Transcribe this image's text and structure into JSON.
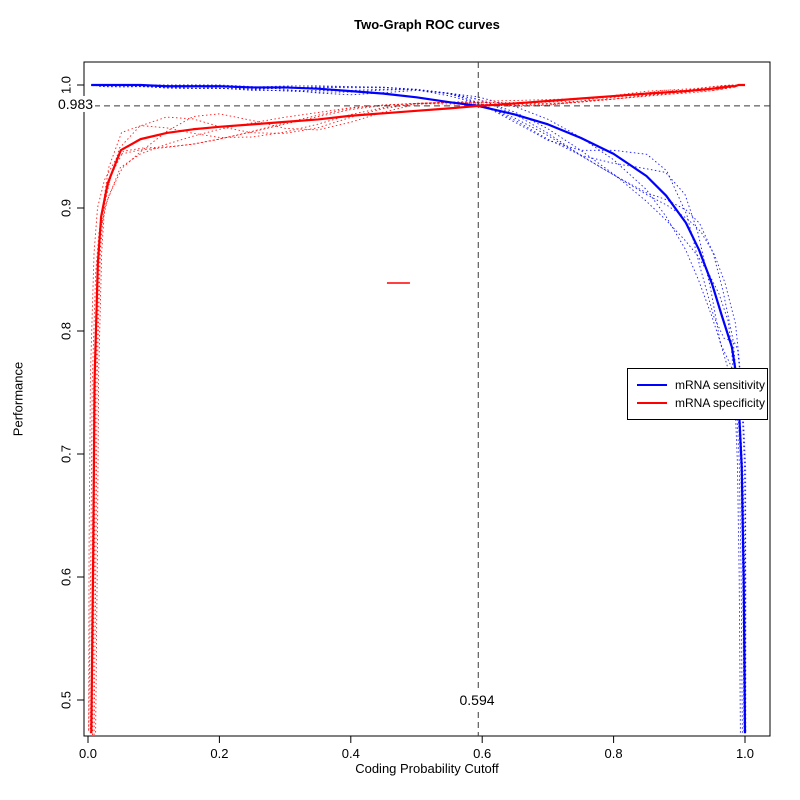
{
  "figure": {
    "background": "#ffffff"
  },
  "chart_data": {
    "type": "line",
    "title": "Two-Graph ROC curves",
    "xlabel": "Coding Probability Cutoff",
    "ylabel": "Performance",
    "xlim": [
      0.0,
      1.0
    ],
    "ylim": [
      0.47,
      1.005
    ],
    "grid": false,
    "x_ticks": [
      0.0,
      0.2,
      0.4,
      0.6,
      0.8,
      1.0
    ],
    "x_tick_labels": [
      "0.0",
      "0.2",
      "0.4",
      "0.6",
      "0.8",
      "1.0"
    ],
    "y_ticks": [
      0.5,
      0.6,
      0.7,
      0.8,
      0.9,
      1.0
    ],
    "y_tick_labels": [
      "0.5",
      "0.6",
      "0.7",
      "0.8",
      "0.9",
      "1.0"
    ],
    "x": [
      0.005,
      0.008,
      0.01,
      0.015,
      0.02,
      0.03,
      0.05,
      0.08,
      0.12,
      0.16,
      0.2,
      0.25,
      0.3,
      0.35,
      0.4,
      0.45,
      0.5,
      0.55,
      0.594,
      0.65,
      0.7,
      0.75,
      0.8,
      0.85,
      0.88,
      0.91,
      0.93,
      0.95,
      0.965,
      0.98,
      0.985,
      0.99,
      0.995,
      0.998,
      1.0
    ],
    "series": [
      {
        "name": "mRNA sensitivity",
        "color": "#0000ff",
        "values": [
          1.0,
          1.0,
          1.0,
          1.0,
          1.0,
          1.0,
          1.0,
          1.0,
          0.999,
          0.999,
          0.999,
          0.998,
          0.998,
          0.997,
          0.995,
          0.993,
          0.99,
          0.986,
          0.983,
          0.976,
          0.968,
          0.957,
          0.944,
          0.926,
          0.91,
          0.888,
          0.866,
          0.838,
          0.812,
          0.787,
          0.77,
          0.745,
          0.69,
          0.6,
          0.473
        ],
        "spread": {
          "base": 0.0015,
          "scale": 0.028,
          "power": 2.5,
          "side": "right"
        }
      },
      {
        "name": "mRNA specificity",
        "color": "#ff0000",
        "values": [
          0.473,
          0.62,
          0.76,
          0.855,
          0.893,
          0.92,
          0.947,
          0.956,
          0.961,
          0.964,
          0.966,
          0.968,
          0.97,
          0.972,
          0.975,
          0.977,
          0.979,
          0.981,
          0.983,
          0.985,
          0.987,
          0.989,
          0.991,
          0.993,
          0.994,
          0.995,
          0.996,
          0.997,
          0.998,
          0.999,
          0.999,
          1.0,
          1.0,
          1.0,
          1.0
        ],
        "spread": {
          "base": 0.0015,
          "scale": 0.014,
          "power": 1.6,
          "side": "left"
        }
      }
    ],
    "replicates": {
      "count": 6,
      "phase": [
        0.7,
        1.9,
        3.1,
        4.3,
        5.5,
        0.2
      ],
      "freq": [
        0.45,
        0.75,
        0.3,
        0.6,
        0.9,
        0.5
      ],
      "x_jitter": [
        -0.007,
        -0.004,
        -0.0015,
        0.002,
        0.0045,
        0.007
      ],
      "line_style": "dotted"
    },
    "thresholds": {
      "line_color": "#3a3a3a",
      "x": {
        "value": 0.594,
        "label": "0.594"
      },
      "y": {
        "value": 0.983,
        "label": "0.983"
      }
    },
    "extra_marks": [
      {
        "type": "segment",
        "x1": 0.455,
        "x2": 0.49,
        "y": 0.839,
        "color": "#ff0000"
      }
    ],
    "legend": {
      "position": "right-middle"
    }
  }
}
